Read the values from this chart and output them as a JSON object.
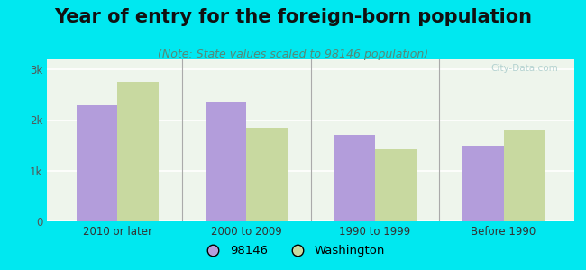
{
  "title": "Year of entry for the foreign-born population",
  "subtitle": "(Note: State values scaled to 98146 population)",
  "categories": [
    "2010 or later",
    "2000 to 2009",
    "1990 to 1999",
    "Before 1990"
  ],
  "values_98146": [
    2300,
    2360,
    1700,
    1490
  ],
  "values_washington": [
    2750,
    1850,
    1430,
    1820
  ],
  "color_98146": "#b39ddb",
  "color_washington": "#c8d9a0",
  "background_outer": "#00e8f0",
  "background_inner": "#eef5ec",
  "yticks": [
    0,
    1000,
    2000,
    3000
  ],
  "ytick_labels": [
    "0",
    "1k",
    "2k",
    "3k"
  ],
  "ylim": [
    0,
    3200
  ],
  "bar_width": 0.32,
  "legend_98146": "98146",
  "legend_washington": "Washington",
  "title_fontsize": 15,
  "subtitle_fontsize": 9,
  "axis_label_fontsize": 8.5,
  "legend_fontsize": 9.5
}
